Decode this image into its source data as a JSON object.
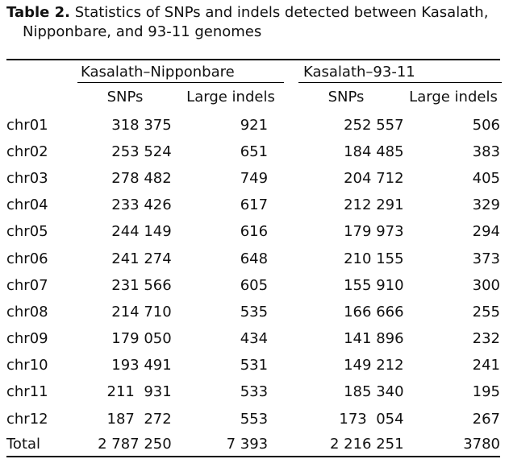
{
  "caption": {
    "label": "Table 2.",
    "text_line1": " Statistics of SNPs and indels detected between Kasalath,",
    "text_line2": "Nipponbare, and 93-11 genomes"
  },
  "header": {
    "group1": "Kasalath–Nipponbare",
    "group2": "Kasalath–93-11",
    "sub": [
      "SNPs",
      "Large indels",
      "SNPs",
      "Large indels"
    ]
  },
  "rows": [
    {
      "chr": "chr01",
      "snp1": "318 375",
      "indel1": "921",
      "snp2": "252 557",
      "indel2": "506"
    },
    {
      "chr": "chr02",
      "snp1": "253 524",
      "indel1": "651",
      "snp2": "184 485",
      "indel2": "383"
    },
    {
      "chr": "chr03",
      "snp1": "278 482",
      "indel1": "749",
      "snp2": "204 712",
      "indel2": "405"
    },
    {
      "chr": "chr04",
      "snp1": "233 426",
      "indel1": "617",
      "snp2": "212 291",
      "indel2": "329"
    },
    {
      "chr": "chr05",
      "snp1": "244 149",
      "indel1": "616",
      "snp2": "179 973",
      "indel2": "294"
    },
    {
      "chr": "chr06",
      "snp1": "241 274",
      "indel1": "648",
      "snp2": "210 155",
      "indel2": "373"
    },
    {
      "chr": "chr07",
      "snp1": "231 566",
      "indel1": "605",
      "snp2": "155 910",
      "indel2": "300"
    },
    {
      "chr": "chr08",
      "snp1": "214 710",
      "indel1": "535",
      "snp2": "166 666",
      "indel2": "255"
    },
    {
      "chr": "chr09",
      "snp1": "179 050",
      "indel1": "434",
      "snp2": "141 896",
      "indel2": "232"
    },
    {
      "chr": "chr10",
      "snp1": "193 491",
      "indel1": "531",
      "snp2": "149 212",
      "indel2": "241"
    },
    {
      "chr": "chr11",
      "snp1": "211  931",
      "indel1": "533",
      "snp2": "185 340",
      "indel2": "195"
    },
    {
      "chr": "chr12",
      "snp1": "187  272",
      "indel1": "553",
      "snp2": "173  054",
      "indel2": "267"
    }
  ],
  "total": {
    "chr": "Total",
    "snp1": "2 787 250",
    "indel1": "7 393",
    "snp2": "2 216 251",
    "indel2": "3780"
  }
}
